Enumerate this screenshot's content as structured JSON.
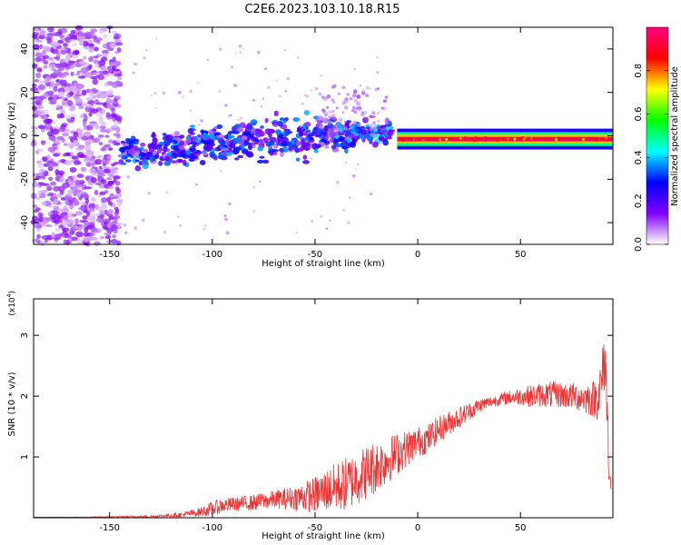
{
  "title": "C2E6.2023.103.10.18.R15",
  "chart_data": [
    {
      "type": "heatmap",
      "xlabel": "Height of straight line (km)",
      "ylabel": "Frequency (Hz)",
      "xlim": [
        -187,
        95
      ],
      "ylim": [
        -50,
        50
      ],
      "xticks": [
        -150,
        -100,
        -50,
        0,
        50
      ],
      "yticks": [
        -40,
        -20,
        0,
        20,
        40
      ],
      "colorbar": {
        "label": "Normalized spectral amplitude",
        "range": [
          0,
          1
        ],
        "ticks": [
          "0.0",
          "0.2",
          "0.4",
          "0.6",
          "0.8"
        ],
        "colors": [
          "#ffffff",
          "#8000ff",
          "#0000ff",
          "#00ffff",
          "#00ff00",
          "#ffff00",
          "#ff0000",
          "#ff0080"
        ]
      },
      "regions": [
        {
          "name": "noise",
          "x_range": [
            -187,
            -145
          ],
          "freq_range": [
            -50,
            50
          ],
          "amplitude": 0.05
        },
        {
          "name": "trend-start",
          "x": -145,
          "freq_center": -8,
          "freq_width": 5,
          "amplitude": 0.35
        },
        {
          "name": "trend-mid",
          "x": -60,
          "freq_center": 0,
          "freq_width": 8,
          "amplitude": 0.35
        },
        {
          "name": "trend-end",
          "x": -15,
          "freq_center": 2,
          "freq_width": 4,
          "amplitude": 0.4
        },
        {
          "name": "steady-line",
          "x_range": [
            -10,
            95
          ],
          "freq_center": -1.5,
          "freq_width": 2,
          "amplitude": 0.95
        }
      ]
    },
    {
      "type": "line",
      "xlabel": "Height of straight line (km)",
      "ylabel": "SNR (10 * v/v)",
      "yscale_label": "(x10",
      "yscale_exp": "4",
      "yscale_close": ")",
      "xlim": [
        -187,
        95
      ],
      "ylim": [
        0,
        3.6
      ],
      "xticks": [
        -150,
        -100,
        -50,
        0,
        50
      ],
      "yticks": [
        1,
        2,
        3
      ],
      "color": "#ee3333",
      "series": [
        {
          "x": [
            -187,
            -160,
            -130,
            -115,
            -105,
            -100,
            -95,
            -90,
            -80,
            -70,
            -60,
            -55,
            -50,
            -45,
            -40,
            -35,
            -30,
            -25,
            -20,
            -15,
            -10,
            -5,
            0,
            5,
            10,
            15,
            20,
            25,
            30,
            35,
            40,
            45,
            50,
            55,
            60,
            65,
            70,
            75,
            80,
            85,
            88,
            90,
            91,
            92,
            93,
            94
          ],
          "values": [
            0.01,
            0.01,
            0.02,
            0.05,
            0.1,
            0.15,
            0.2,
            0.22,
            0.25,
            0.3,
            0.33,
            0.35,
            0.38,
            0.45,
            0.5,
            0.55,
            0.65,
            0.75,
            0.85,
            0.95,
            1.05,
            1.15,
            1.25,
            1.3,
            1.45,
            1.55,
            1.65,
            1.75,
            1.85,
            1.9,
            1.95,
            1.98,
            2.0,
            2.0,
            2.02,
            2.03,
            2.02,
            2.0,
            1.98,
            1.95,
            2.0,
            2.3,
            2.7,
            2.0,
            1.0,
            0.5
          ],
          "noise": [
            0.0,
            0.005,
            0.02,
            0.04,
            0.08,
            0.12,
            0.12,
            0.12,
            0.13,
            0.15,
            0.2,
            0.25,
            0.3,
            0.35,
            0.4,
            0.45,
            0.45,
            0.45,
            0.45,
            0.4,
            0.35,
            0.3,
            0.25,
            0.25,
            0.22,
            0.2,
            0.18,
            0.15,
            0.12,
            0.1,
            0.1,
            0.12,
            0.15,
            0.18,
            0.2,
            0.22,
            0.22,
            0.22,
            0.25,
            0.3,
            0.4,
            0.55,
            0.6,
            0.6,
            0.4,
            0.2
          ]
        }
      ]
    }
  ]
}
